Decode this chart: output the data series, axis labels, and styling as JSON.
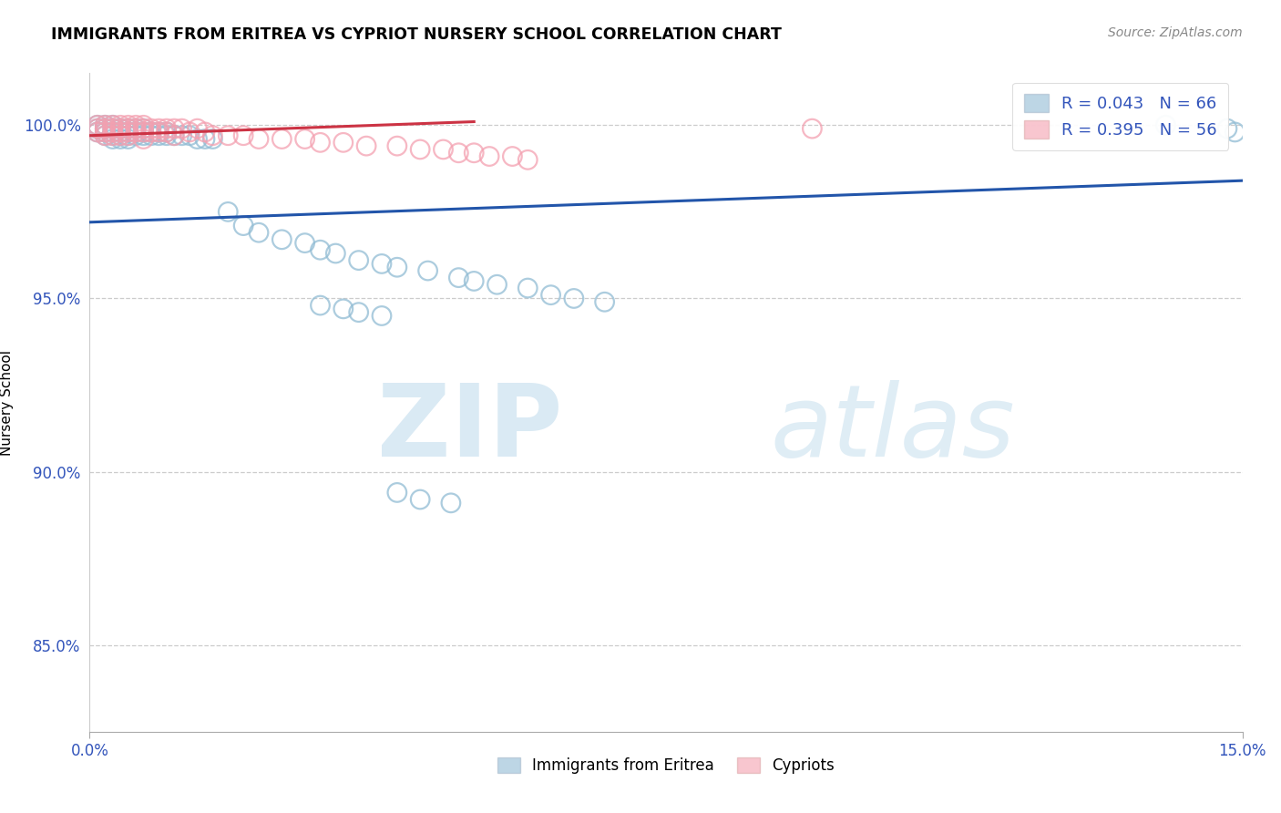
{
  "title": "IMMIGRANTS FROM ERITREA VS CYPRIOT NURSERY SCHOOL CORRELATION CHART",
  "source": "Source: ZipAtlas.com",
  "ylabel": "Nursery School",
  "xlim": [
    0.0,
    0.15
  ],
  "ylim": [
    0.825,
    1.015
  ],
  "blue_color": "#91bcd4",
  "pink_color": "#f4a0b0",
  "blue_line_color": "#2255aa",
  "pink_line_color": "#cc3344",
  "axis_color": "#3355bb",
  "legend_blue_r": "R = 0.043",
  "legend_blue_n": "N = 66",
  "legend_pink_r": "R = 0.395",
  "legend_pink_n": "N = 56",
  "blue_scatter_x": [
    0.001,
    0.001,
    0.001,
    0.002,
    0.002,
    0.002,
    0.002,
    0.003,
    0.003,
    0.003,
    0.003,
    0.003,
    0.004,
    0.004,
    0.004,
    0.004,
    0.005,
    0.005,
    0.005,
    0.005,
    0.006,
    0.006,
    0.006,
    0.007,
    0.007,
    0.007,
    0.008,
    0.008,
    0.009,
    0.009,
    0.01,
    0.01,
    0.011,
    0.012,
    0.013,
    0.014,
    0.015,
    0.016,
    0.018,
    0.02,
    0.022,
    0.025,
    0.028,
    0.03,
    0.032,
    0.035,
    0.038,
    0.04,
    0.044,
    0.048,
    0.05,
    0.053,
    0.057,
    0.06,
    0.063,
    0.067,
    0.03,
    0.033,
    0.035,
    0.038,
    0.04,
    0.043,
    0.047,
    0.14,
    0.148,
    0.149
  ],
  "blue_scatter_y": [
    1.0,
    0.999,
    0.998,
    1.0,
    0.999,
    0.998,
    0.997,
    1.0,
    0.999,
    0.998,
    0.997,
    0.996,
    0.999,
    0.998,
    0.997,
    0.996,
    0.999,
    0.998,
    0.997,
    0.996,
    0.999,
    0.998,
    0.997,
    0.999,
    0.998,
    0.997,
    0.998,
    0.997,
    0.998,
    0.997,
    0.998,
    0.997,
    0.997,
    0.997,
    0.997,
    0.996,
    0.996,
    0.996,
    0.975,
    0.971,
    0.969,
    0.967,
    0.966,
    0.964,
    0.963,
    0.961,
    0.96,
    0.959,
    0.958,
    0.956,
    0.955,
    0.954,
    0.953,
    0.951,
    0.95,
    0.949,
    0.948,
    0.947,
    0.946,
    0.945,
    0.894,
    0.892,
    0.891,
    1.0,
    0.999,
    0.998
  ],
  "pink_scatter_x": [
    0.001,
    0.001,
    0.001,
    0.002,
    0.002,
    0.002,
    0.002,
    0.003,
    0.003,
    0.003,
    0.003,
    0.004,
    0.004,
    0.004,
    0.004,
    0.005,
    0.005,
    0.005,
    0.005,
    0.006,
    0.006,
    0.006,
    0.007,
    0.007,
    0.007,
    0.008,
    0.008,
    0.009,
    0.009,
    0.01,
    0.01,
    0.011,
    0.011,
    0.012,
    0.013,
    0.014,
    0.015,
    0.016,
    0.018,
    0.02,
    0.022,
    0.025,
    0.028,
    0.03,
    0.033,
    0.036,
    0.04,
    0.043,
    0.046,
    0.048,
    0.05,
    0.052,
    0.055,
    0.057,
    0.094,
    0.007
  ],
  "pink_scatter_y": [
    1.0,
    0.999,
    0.998,
    1.0,
    0.999,
    0.998,
    0.997,
    1.0,
    0.999,
    0.998,
    0.997,
    1.0,
    0.999,
    0.998,
    0.997,
    1.0,
    0.999,
    0.998,
    0.997,
    1.0,
    0.999,
    0.998,
    1.0,
    0.999,
    0.998,
    0.999,
    0.998,
    0.999,
    0.998,
    0.999,
    0.998,
    0.999,
    0.997,
    0.999,
    0.998,
    0.999,
    0.998,
    0.997,
    0.997,
    0.997,
    0.996,
    0.996,
    0.996,
    0.995,
    0.995,
    0.994,
    0.994,
    0.993,
    0.993,
    0.992,
    0.992,
    0.991,
    0.991,
    0.99,
    0.999,
    0.996
  ],
  "blue_line_x": [
    0.0,
    0.15
  ],
  "blue_line_y": [
    0.972,
    0.984
  ],
  "pink_line_x": [
    0.0,
    0.05
  ],
  "pink_line_y": [
    0.997,
    1.001
  ]
}
